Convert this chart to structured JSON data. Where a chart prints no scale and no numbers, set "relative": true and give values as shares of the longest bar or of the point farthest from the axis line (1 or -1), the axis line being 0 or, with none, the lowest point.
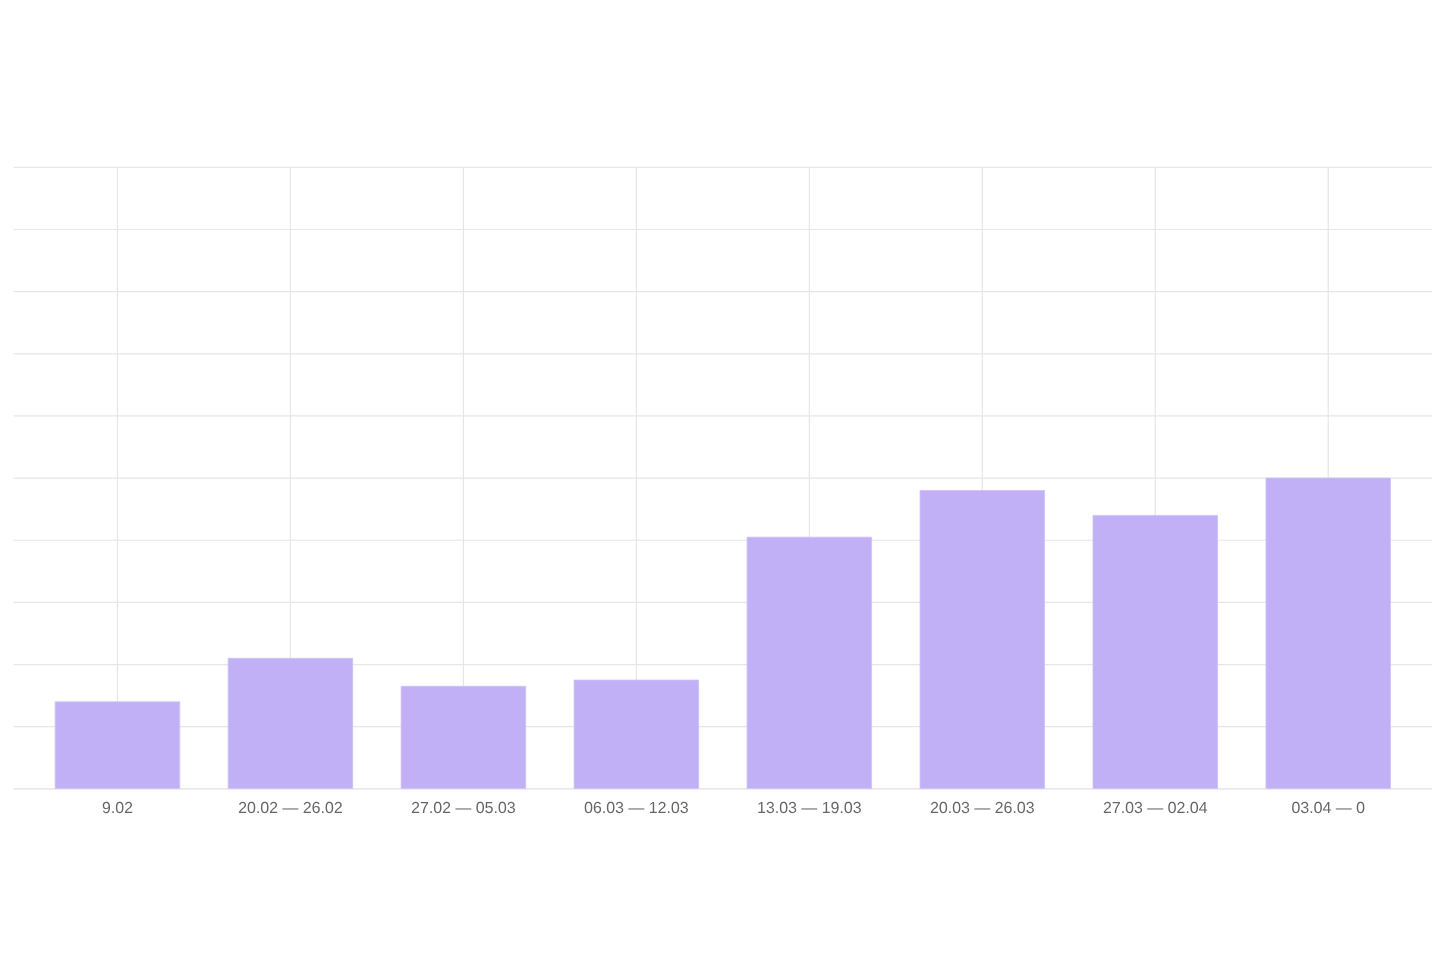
{
  "chart_data": {
    "type": "bar",
    "relative": true,
    "grid": true,
    "color": "#c2b0f6",
    "categories": [
      "9.02",
      "20.02 — 26.02",
      "27.02 — 05.03",
      "06.03 — 12.03",
      "13.03 — 19.03",
      "20.03 — 26.03",
      "27.03 — 02.04",
      "03.04 — 0"
    ],
    "values": [
      0.28,
      0.42,
      0.33,
      0.35,
      0.81,
      0.96,
      0.88,
      1
    ]
  }
}
